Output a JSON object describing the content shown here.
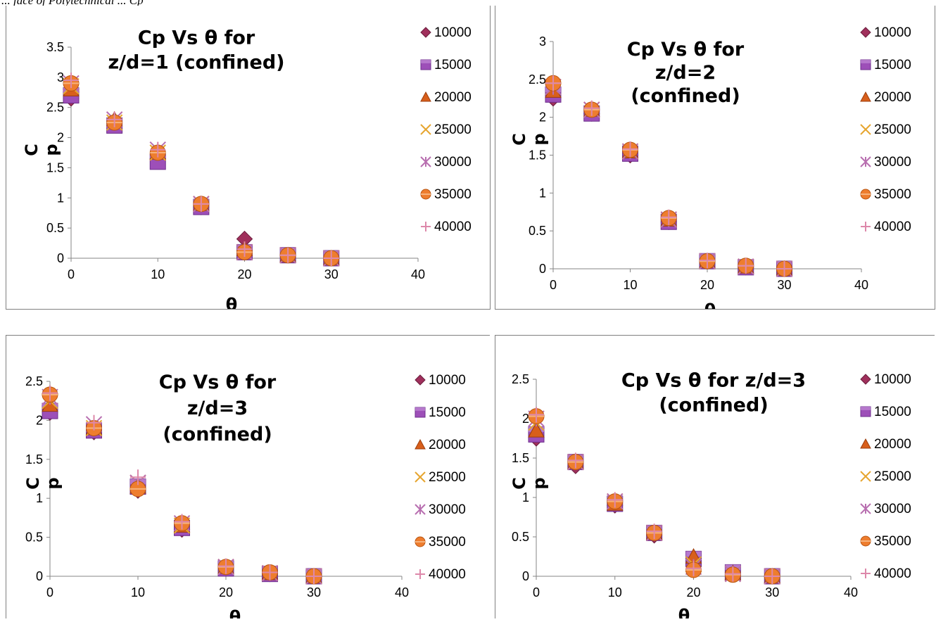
{
  "caption": "... face of Polytechnical ... Cp",
  "series_names": [
    "10000",
    "15000",
    "20000",
    "25000",
    "30000",
    "35000",
    "40000"
  ],
  "series_colors": [
    "#a0305c",
    "#9d4fb8",
    "#d85f1b",
    "#e6a630",
    "#b86fb0",
    "#ee7d2e",
    "#dd88aa"
  ],
  "series_markers": [
    "diamond",
    "square",
    "triangle",
    "x",
    "asterisk",
    "circle",
    "plus"
  ],
  "chart_data": [
    {
      "type": "scatter",
      "title_lines": [
        "Cp Vs θ for",
        "z/d=1 (confined)"
      ],
      "xlabel": "θ",
      "ylabel_lines": [
        "C",
        "p"
      ],
      "xlim": [
        0,
        40
      ],
      "ylim": [
        0,
        3.5
      ],
      "xticks": [
        "0",
        "10",
        "20",
        "30",
        "40"
      ],
      "yticks": [
        "0",
        "0.5",
        "1",
        "1.5",
        "2",
        "2.5",
        "3",
        "3.5"
      ],
      "x": [
        0,
        5,
        10,
        15,
        20,
        25,
        30
      ],
      "series": [
        {
          "name": "10000",
          "values": [
            2.65,
            2.25,
            1.65,
            0.85,
            0.32,
            0.05,
            0.0
          ]
        },
        {
          "name": "15000",
          "values": [
            2.7,
            2.2,
            1.6,
            0.85,
            0.1,
            0.05,
            0.0
          ]
        },
        {
          "name": "20000",
          "values": [
            2.8,
            2.3,
            1.75,
            0.9,
            0.15,
            0.05,
            0.0
          ]
        },
        {
          "name": "25000",
          "values": [
            2.85,
            2.25,
            1.75,
            0.9,
            0.1,
            0.05,
            0.0
          ]
        },
        {
          "name": "30000",
          "values": [
            2.9,
            2.3,
            1.8,
            0.9,
            0.1,
            0.05,
            0.0
          ]
        },
        {
          "name": "35000",
          "values": [
            2.9,
            2.25,
            1.75,
            0.9,
            0.1,
            0.05,
            0.0
          ]
        },
        {
          "name": "40000",
          "values": [
            2.95,
            2.3,
            1.8,
            0.9,
            0.15,
            0.05,
            0.0
          ]
        }
      ]
    },
    {
      "type": "scatter",
      "title_lines": [
        "Cp Vs θ for",
        "z/d=2",
        "(confined)"
      ],
      "xlabel": "θ",
      "ylabel_lines": [
        "C",
        "p"
      ],
      "xlim": [
        0,
        40
      ],
      "ylim": [
        0,
        3
      ],
      "xticks": [
        "0",
        "10",
        "20",
        "30",
        "40"
      ],
      "yticks": [
        "0",
        "0.5",
        "1",
        "1.5",
        "2",
        "2.5",
        "3"
      ],
      "x": [
        0,
        5,
        10,
        15,
        20,
        25,
        30
      ],
      "series": [
        {
          "name": "10000",
          "values": [
            2.25,
            2.05,
            1.5,
            0.62,
            0.1,
            0.02,
            0.0
          ]
        },
        {
          "name": "15000",
          "values": [
            2.3,
            2.05,
            1.52,
            0.62,
            0.1,
            0.02,
            0.0
          ]
        },
        {
          "name": "20000",
          "values": [
            2.35,
            2.1,
            1.55,
            0.65,
            0.1,
            0.03,
            0.0
          ]
        },
        {
          "name": "25000",
          "values": [
            2.4,
            2.1,
            1.55,
            0.65,
            0.1,
            0.03,
            0.0
          ]
        },
        {
          "name": "30000",
          "values": [
            2.4,
            2.1,
            1.55,
            0.65,
            0.1,
            0.03,
            0.0
          ]
        },
        {
          "name": "35000",
          "values": [
            2.45,
            2.1,
            1.57,
            0.67,
            0.1,
            0.04,
            0.0
          ]
        },
        {
          "name": "40000",
          "values": [
            2.45,
            2.12,
            1.58,
            0.68,
            0.11,
            0.04,
            0.0
          ]
        }
      ]
    },
    {
      "type": "scatter",
      "title_lines": [
        "Cp Vs θ for",
        "z/d=3",
        "(confined)"
      ],
      "xlabel": "θ",
      "ylabel_lines": [
        "C",
        "p"
      ],
      "xlim": [
        0,
        40
      ],
      "ylim": [
        0,
        2.5
      ],
      "xticks": [
        "0",
        "10",
        "20",
        "30",
        "40"
      ],
      "yticks": [
        "0",
        "0.5",
        "1",
        "1.5",
        "2",
        "2.5"
      ],
      "x": [
        0,
        5,
        10,
        15,
        20,
        25,
        30
      ],
      "series": [
        {
          "name": "10000",
          "values": [
            2.1,
            1.85,
            1.1,
            0.6,
            0.1,
            0.03,
            0.0
          ]
        },
        {
          "name": "15000",
          "values": [
            2.12,
            1.87,
            1.15,
            0.62,
            0.1,
            0.03,
            0.0
          ]
        },
        {
          "name": "20000",
          "values": [
            2.2,
            1.9,
            1.15,
            0.65,
            0.12,
            0.04,
            0.0
          ]
        },
        {
          "name": "25000",
          "values": [
            2.25,
            1.9,
            1.2,
            0.65,
            0.12,
            0.04,
            0.0
          ]
        },
        {
          "name": "30000",
          "values": [
            2.3,
            1.95,
            1.2,
            0.68,
            0.12,
            0.04,
            0.0
          ]
        },
        {
          "name": "35000",
          "values": [
            2.33,
            1.9,
            1.12,
            0.68,
            0.12,
            0.05,
            0.0
          ]
        },
        {
          "name": "40000",
          "values": [
            2.35,
            1.97,
            1.27,
            0.7,
            0.13,
            0.05,
            0.0
          ]
        }
      ]
    },
    {
      "type": "scatter",
      "title_lines": [
        "Cp Vs θ for z/d=3",
        "(confined)"
      ],
      "xlabel": "θ",
      "ylabel_lines": [
        "C",
        "p"
      ],
      "xlim": [
        0,
        40
      ],
      "ylim": [
        0,
        2.5
      ],
      "xticks": [
        "0",
        "10",
        "20",
        "30",
        "40"
      ],
      "yticks": [
        "0",
        "0.5",
        "1",
        "1.5",
        "2",
        "2.5"
      ],
      "x": [
        0,
        5,
        10,
        15,
        20,
        25,
        30
      ],
      "series": [
        {
          "name": "10000",
          "values": [
            1.75,
            1.4,
            0.9,
            0.52,
            0.22,
            0.05,
            0.0
          ]
        },
        {
          "name": "15000",
          "values": [
            1.8,
            1.45,
            0.92,
            0.55,
            0.22,
            0.05,
            0.0
          ]
        },
        {
          "name": "20000",
          "values": [
            1.85,
            1.45,
            0.92,
            0.55,
            0.25,
            0.04,
            0.0
          ]
        },
        {
          "name": "25000",
          "values": [
            1.95,
            1.45,
            0.95,
            0.55,
            0.15,
            0.03,
            0.0
          ]
        },
        {
          "name": "30000",
          "values": [
            2.0,
            1.45,
            0.95,
            0.55,
            0.12,
            0.03,
            0.0
          ]
        },
        {
          "name": "35000",
          "values": [
            2.03,
            1.45,
            0.95,
            0.55,
            0.08,
            0.02,
            0.0
          ]
        },
        {
          "name": "40000",
          "values": [
            2.05,
            1.47,
            0.97,
            0.57,
            0.1,
            0.03,
            0.0
          ]
        }
      ]
    }
  ]
}
